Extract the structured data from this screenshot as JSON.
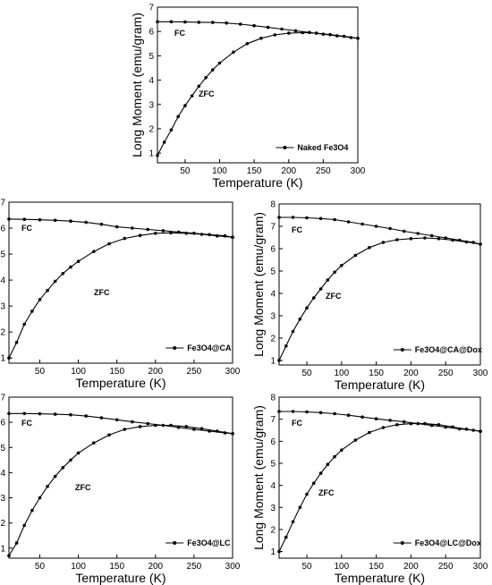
{
  "chart_data": [
    {
      "type": "line",
      "xlabel": "Temperature (K)",
      "ylabel": "Long Moment (emu/gram)",
      "xlim": [
        10,
        300
      ],
      "ylim": [
        0.6,
        7
      ],
      "xticks": [
        50,
        100,
        150,
        200,
        250,
        300
      ],
      "yticks": [
        1,
        2,
        3,
        4,
        5,
        6,
        7
      ],
      "series": [
        {
          "name": "Naked Fe3O4",
          "label": "ZFC",
          "x": [
            10,
            20,
            30,
            40,
            50,
            60,
            70,
            80,
            90,
            100,
            120,
            140,
            160,
            180,
            200,
            220,
            240,
            260,
            280,
            300
          ],
          "y": [
            0.9,
            1.45,
            1.95,
            2.5,
            2.95,
            3.35,
            3.75,
            4.1,
            4.42,
            4.7,
            5.15,
            5.5,
            5.72,
            5.86,
            5.93,
            5.95,
            5.93,
            5.87,
            5.8,
            5.72
          ]
        },
        {
          "label": "FC",
          "x": [
            10,
            30,
            50,
            70,
            90,
            110,
            130,
            150,
            170,
            190,
            210,
            230,
            250,
            270,
            290,
            300
          ],
          "y": [
            6.4,
            6.4,
            6.39,
            6.38,
            6.37,
            6.35,
            6.3,
            6.24,
            6.17,
            6.1,
            6.03,
            5.96,
            5.89,
            5.82,
            5.75,
            5.72
          ]
        }
      ],
      "legend": {
        "label": "Naked Fe3O4",
        "position": "bottom-right"
      },
      "annotations": [
        "FC",
        "ZFC"
      ]
    },
    {
      "type": "line",
      "xlabel": "Temperature (K)",
      "ylabel": "Long Moment (emu/gram)",
      "xlim": [
        10,
        300
      ],
      "ylim": [
        0.8,
        7
      ],
      "xticks": [
        50,
        100,
        150,
        200,
        250,
        300
      ],
      "yticks": [
        1,
        2,
        3,
        4,
        5,
        6,
        7
      ],
      "series": [
        {
          "name": "Fe3O4@CA",
          "label": "ZFC",
          "x": [
            10,
            20,
            30,
            40,
            50,
            60,
            70,
            80,
            90,
            100,
            120,
            140,
            160,
            180,
            200,
            220,
            240,
            260,
            280,
            300
          ],
          "y": [
            1.0,
            1.6,
            2.3,
            2.8,
            3.25,
            3.6,
            3.95,
            4.25,
            4.5,
            4.72,
            5.1,
            5.4,
            5.6,
            5.72,
            5.8,
            5.82,
            5.8,
            5.76,
            5.7,
            5.65
          ]
        },
        {
          "label": "FC",
          "x": [
            10,
            30,
            50,
            70,
            90,
            110,
            130,
            150,
            170,
            190,
            210,
            230,
            250,
            270,
            290,
            300
          ],
          "y": [
            6.35,
            6.34,
            6.32,
            6.3,
            6.27,
            6.22,
            6.15,
            6.05,
            6.0,
            5.95,
            5.9,
            5.85,
            5.8,
            5.75,
            5.7,
            5.65
          ]
        }
      ],
      "legend": {
        "label": "Fe3O4@CA",
        "position": "bottom-right"
      },
      "annotations": [
        "FC",
        "ZFC"
      ]
    },
    {
      "type": "line",
      "xlabel": "Temperature (K)",
      "ylabel": "Long Moment (emu/gram)",
      "xlim": [
        10,
        300
      ],
      "ylim": [
        0.8,
        8
      ],
      "xticks": [
        50,
        100,
        150,
        200,
        250,
        300
      ],
      "yticks": [
        1,
        2,
        3,
        4,
        5,
        6,
        7,
        8
      ],
      "series": [
        {
          "name": "Fe3O4@CA@Dox",
          "label": "ZFC",
          "x": [
            10,
            20,
            30,
            40,
            50,
            60,
            70,
            80,
            90,
            100,
            120,
            140,
            160,
            180,
            200,
            220,
            240,
            260,
            280,
            300
          ],
          "y": [
            1.0,
            1.65,
            2.3,
            2.85,
            3.35,
            3.8,
            4.2,
            4.6,
            4.95,
            5.25,
            5.7,
            6.05,
            6.28,
            6.4,
            6.45,
            6.48,
            6.45,
            6.38,
            6.3,
            6.2
          ]
        },
        {
          "label": "FC",
          "x": [
            10,
            30,
            50,
            70,
            90,
            110,
            130,
            150,
            170,
            190,
            210,
            230,
            250,
            270,
            290,
            300
          ],
          "y": [
            7.4,
            7.4,
            7.38,
            7.35,
            7.3,
            7.2,
            7.1,
            7.0,
            6.9,
            6.78,
            6.68,
            6.58,
            6.48,
            6.38,
            6.28,
            6.2
          ]
        }
      ],
      "legend": {
        "label": "Fe3O4@CA@Dox",
        "position": "bottom-right"
      },
      "annotations": [
        "FC",
        "ZFC"
      ]
    },
    {
      "type": "line",
      "xlabel": "Temperature (K)",
      "ylabel": "Long Moment (emu/gram)",
      "xlim": [
        10,
        300
      ],
      "ylim": [
        0.6,
        7
      ],
      "xticks": [
        50,
        100,
        150,
        200,
        250,
        300
      ],
      "yticks": [
        1,
        2,
        3,
        4,
        5,
        6,
        7
      ],
      "series": [
        {
          "name": "Fe3O4@LC",
          "label": "ZFC",
          "x": [
            10,
            20,
            30,
            40,
            50,
            60,
            70,
            80,
            90,
            100,
            120,
            140,
            160,
            180,
            200,
            220,
            240,
            260,
            280,
            300
          ],
          "y": [
            0.7,
            1.2,
            1.9,
            2.5,
            3.0,
            3.45,
            3.85,
            4.2,
            4.5,
            4.78,
            5.18,
            5.5,
            5.72,
            5.83,
            5.88,
            5.88,
            5.83,
            5.75,
            5.65,
            5.55
          ]
        },
        {
          "label": "FC",
          "x": [
            10,
            30,
            50,
            70,
            90,
            110,
            130,
            150,
            170,
            190,
            210,
            230,
            250,
            270,
            290,
            300
          ],
          "y": [
            6.35,
            6.35,
            6.34,
            6.32,
            6.3,
            6.25,
            6.18,
            6.1,
            6.02,
            5.95,
            5.88,
            5.8,
            5.72,
            5.65,
            5.58,
            5.55
          ]
        }
      ],
      "legend": {
        "label": "Fe3O4@LC",
        "position": "bottom-right"
      },
      "annotations": [
        "FC",
        "ZFC"
      ]
    },
    {
      "type": "line",
      "xlabel": "Temperature (K)",
      "ylabel": "Long Moment (emu/gram)",
      "xlim": [
        10,
        300
      ],
      "ylim": [
        0.7,
        8
      ],
      "xticks": [
        50,
        100,
        150,
        200,
        250,
        300
      ],
      "yticks": [
        1,
        2,
        3,
        4,
        5,
        6,
        7,
        8
      ],
      "series": [
        {
          "name": "Fe3O4@LC@Dox",
          "label": "ZFC",
          "x": [
            10,
            20,
            30,
            40,
            50,
            60,
            70,
            80,
            90,
            100,
            120,
            140,
            160,
            180,
            200,
            220,
            240,
            260,
            280,
            300
          ],
          "y": [
            1.0,
            1.65,
            2.35,
            3.0,
            3.6,
            4.1,
            4.55,
            4.95,
            5.3,
            5.6,
            6.05,
            6.4,
            6.62,
            6.75,
            6.8,
            6.8,
            6.75,
            6.65,
            6.55,
            6.45
          ]
        },
        {
          "label": "FC",
          "x": [
            10,
            30,
            50,
            70,
            90,
            110,
            130,
            150,
            170,
            190,
            210,
            230,
            250,
            270,
            290,
            300
          ],
          "y": [
            7.35,
            7.35,
            7.33,
            7.3,
            7.25,
            7.18,
            7.1,
            7.02,
            6.95,
            6.88,
            6.8,
            6.72,
            6.64,
            6.56,
            6.5,
            6.45
          ]
        }
      ],
      "legend": {
        "label": "Fe3O4@LC@Dox",
        "position": "bottom-right"
      },
      "annotations": [
        "FC",
        "ZFC"
      ]
    }
  ]
}
